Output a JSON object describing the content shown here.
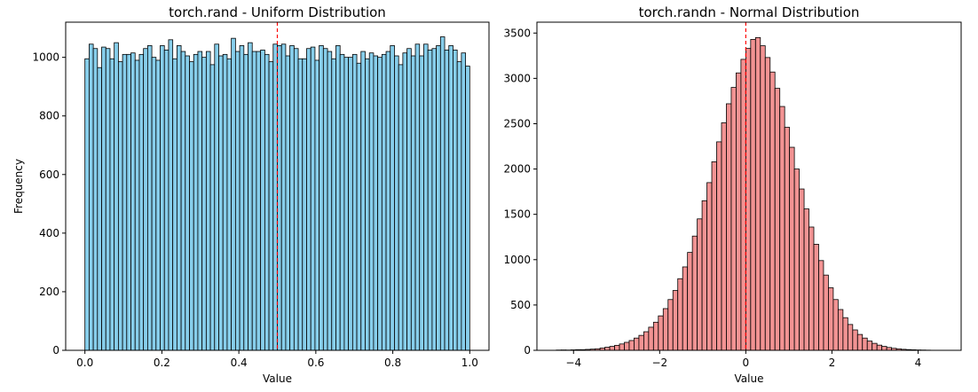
{
  "chart_data": [
    {
      "type": "bar",
      "title": "torch.rand - Uniform Distribution",
      "xlabel": "Value",
      "ylabel": "Frequency",
      "xlim": [
        -0.05,
        1.05
      ],
      "ylim": [
        0,
        1120
      ],
      "xticks": [
        0.0,
        0.2,
        0.4,
        0.6,
        0.8,
        1.0
      ],
      "xtick_labels": [
        "0.0",
        "0.2",
        "0.4",
        "0.6",
        "0.8",
        "1.0"
      ],
      "yticks": [
        0,
        200,
        400,
        600,
        800,
        1000
      ],
      "ytick_labels": [
        "0",
        "200",
        "400",
        "600",
        "800",
        "1000"
      ],
      "bin_start": 0.0,
      "bin_end": 1.0,
      "values": [
        995,
        1045,
        1030,
        965,
        1035,
        1030,
        995,
        1050,
        985,
        1010,
        1010,
        1015,
        990,
        1010,
        1030,
        1040,
        1000,
        990,
        1040,
        1025,
        1060,
        995,
        1040,
        1020,
        1005,
        985,
        1010,
        1020,
        1000,
        1020,
        975,
        1045,
        1005,
        1010,
        995,
        1065,
        1020,
        1040,
        1010,
        1050,
        1020,
        1020,
        1025,
        1010,
        985,
        1045,
        1040,
        1045,
        1005,
        1040,
        1030,
        995,
        995,
        1030,
        1035,
        990,
        1040,
        1030,
        1020,
        995,
        1040,
        1010,
        1000,
        1000,
        1010,
        980,
        1020,
        995,
        1015,
        1005,
        1000,
        1010,
        1020,
        1040,
        1005,
        975,
        1015,
        1030,
        1005,
        1045,
        1005,
        1045,
        1025,
        1030,
        1040,
        1070,
        1025,
        1040,
        1025,
        985,
        1015,
        970
      ],
      "bar_color": "#87ceeb",
      "edge_color": "#000000",
      "mean_line": 0.5,
      "mean_line_color": "#ff0000",
      "grid": false
    },
    {
      "type": "bar",
      "title": "torch.randn - Normal Distribution",
      "xlabel": "Value",
      "ylabel": "",
      "xlim": [
        -4.85,
        5.0
      ],
      "ylim": [
        0,
        3620
      ],
      "xticks": [
        -4,
        -2,
        0,
        2,
        4
      ],
      "xtick_labels": [
        "−4",
        "−2",
        "0",
        "2",
        "4"
      ],
      "yticks": [
        0,
        500,
        1000,
        1500,
        2000,
        2500,
        3000,
        3500
      ],
      "ytick_labels": [
        "0",
        "500",
        "1000",
        "1500",
        "2000",
        "2500",
        "3000",
        "3500"
      ],
      "bin_start": -4.4,
      "bin_end": 4.4,
      "values": [
        3,
        4,
        3,
        5,
        7,
        7,
        10,
        13,
        17,
        25,
        34,
        43,
        55,
        70,
        88,
        108,
        135,
        165,
        205,
        255,
        310,
        380,
        460,
        560,
        660,
        790,
        920,
        1080,
        1260,
        1450,
        1650,
        1850,
        2080,
        2300,
        2510,
        2720,
        2900,
        3060,
        3210,
        3330,
        3430,
        3450,
        3360,
        3230,
        3070,
        2890,
        2690,
        2460,
        2240,
        2000,
        1780,
        1560,
        1360,
        1170,
        990,
        830,
        690,
        560,
        450,
        360,
        285,
        225,
        175,
        135,
        102,
        77,
        57,
        43,
        31,
        22,
        16,
        11,
        8,
        6,
        4,
        3,
        2,
        1
      ],
      "bar_color": "#f08080",
      "edge_color": "#000000",
      "mean_line": 0.0,
      "mean_line_color": "#ff0000",
      "grid": false
    }
  ]
}
